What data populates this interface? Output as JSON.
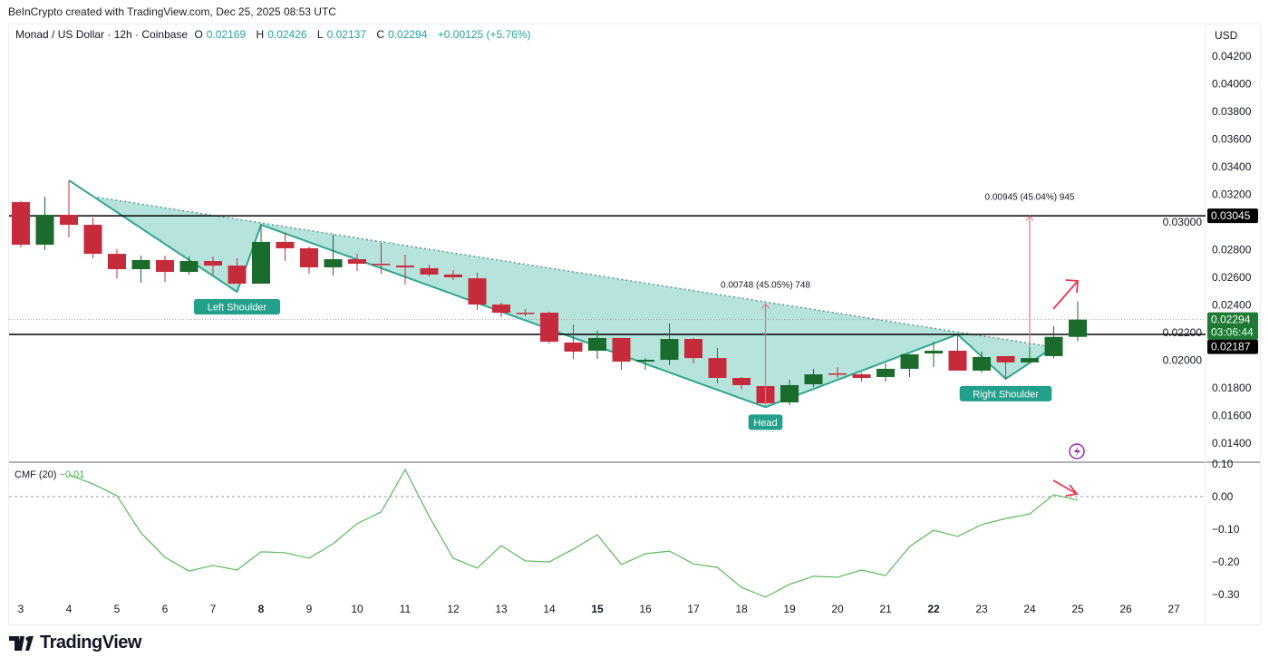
{
  "credit": "BeInCrypto created with TradingView.com, Dec 25, 2025 08:53 UTC",
  "legend": {
    "symbol": "Monad / US Dollar · 12h · Coinbase",
    "o_label": "O",
    "o": "0.02169",
    "h_label": "H",
    "h": "0.02426",
    "l_label": "L",
    "l": "0.02137",
    "c_label": "C",
    "c": "0.02294",
    "change": "+0.00125 (+5.76%)"
  },
  "currency": "USD",
  "logo": "TradingView",
  "colors": {
    "up": "#1a6b2c",
    "down": "#c62b3c",
    "pattern_fill": "#b2e3da",
    "pattern_line": "#2fa58e",
    "cmf": "#5cb85c",
    "arrow": "#e8364f",
    "lightning": "#9c27b0"
  },
  "chart_data": [
    {
      "type": "candlestick",
      "interval": "12h",
      "y_axis": {
        "range": [
          0.014,
          0.042
        ],
        "ticks": [
          "0.04200",
          "0.04000",
          "0.03800",
          "0.03600",
          "0.03400",
          "0.03200",
          "0.03000",
          "0.02800",
          "0.02600",
          "0.02400",
          "0.02200",
          "0.02000",
          "0.01800",
          "0.01600",
          "0.01400"
        ]
      },
      "x_axis": {
        "ticks": [
          {
            "label": "3",
            "day": 3
          },
          {
            "label": "4",
            "day": 4
          },
          {
            "label": "5",
            "day": 5
          },
          {
            "label": "6",
            "day": 6
          },
          {
            "label": "7",
            "day": 7
          },
          {
            "label": "8",
            "day": 8,
            "bold": true
          },
          {
            "label": "9",
            "day": 9
          },
          {
            "label": "10",
            "day": 10
          },
          {
            "label": "11",
            "day": 11
          },
          {
            "label": "12",
            "day": 12
          },
          {
            "label": "13",
            "day": 13
          },
          {
            "label": "14",
            "day": 14
          },
          {
            "label": "15",
            "day": 15,
            "bold": true
          },
          {
            "label": "16",
            "day": 16
          },
          {
            "label": "17",
            "day": 17
          },
          {
            "label": "18",
            "day": 18
          },
          {
            "label": "19",
            "day": 19
          },
          {
            "label": "20",
            "day": 20
          },
          {
            "label": "21",
            "day": 21
          },
          {
            "label": "22",
            "day": 22,
            "bold": true
          },
          {
            "label": "23",
            "day": 23
          },
          {
            "label": "24",
            "day": 24
          },
          {
            "label": "25",
            "day": 25
          },
          {
            "label": "26",
            "day": 26
          },
          {
            "label": "27",
            "day": 27
          }
        ]
      },
      "candles": [
        {
          "t": "Dec 3 00:00",
          "o": 0.03144,
          "h": 0.03151,
          "l": 0.02816,
          "c": 0.02836
        },
        {
          "t": "Dec 3 12:00",
          "o": 0.02836,
          "h": 0.03184,
          "l": 0.02797,
          "c": 0.03052
        },
        {
          "t": "Dec 4 00:00",
          "o": 0.03052,
          "h": 0.03302,
          "l": 0.02889,
          "c": 0.0298
        },
        {
          "t": "Dec 4 12:00",
          "o": 0.0298,
          "h": 0.03033,
          "l": 0.02738,
          "c": 0.0277
        },
        {
          "t": "Dec 5 00:00",
          "o": 0.0277,
          "h": 0.02803,
          "l": 0.02593,
          "c": 0.02659
        },
        {
          "t": "Dec 5 12:00",
          "o": 0.02659,
          "h": 0.02757,
          "l": 0.02561,
          "c": 0.02725
        },
        {
          "t": "Dec 6 00:00",
          "o": 0.02725,
          "h": 0.02757,
          "l": 0.02567,
          "c": 0.02639
        },
        {
          "t": "Dec 6 12:00",
          "o": 0.02639,
          "h": 0.02751,
          "l": 0.0262,
          "c": 0.02718
        },
        {
          "t": "Dec 7 00:00",
          "o": 0.02718,
          "h": 0.02751,
          "l": 0.0262,
          "c": 0.02685
        },
        {
          "t": "Dec 7 12:00",
          "o": 0.02685,
          "h": 0.02738,
          "l": 0.02554,
          "c": 0.02554
        },
        {
          "t": "Dec 8 00:00",
          "o": 0.02554,
          "h": 0.0298,
          "l": 0.02554,
          "c": 0.02856
        },
        {
          "t": "Dec 8 12:00",
          "o": 0.02856,
          "h": 0.02921,
          "l": 0.02718,
          "c": 0.0281
        },
        {
          "t": "Dec 9 00:00",
          "o": 0.0281,
          "h": 0.02823,
          "l": 0.02626,
          "c": 0.02672
        },
        {
          "t": "Dec 9 12:00",
          "o": 0.02672,
          "h": 0.02908,
          "l": 0.02613,
          "c": 0.02731
        },
        {
          "t": "Dec 10 00:00",
          "o": 0.02731,
          "h": 0.0277,
          "l": 0.02646,
          "c": 0.02698
        },
        {
          "t": "Dec 10 12:00",
          "o": 0.02698,
          "h": 0.02849,
          "l": 0.02626,
          "c": 0.02692
        },
        {
          "t": "Dec 11 00:00",
          "o": 0.02685,
          "h": 0.02764,
          "l": 0.02548,
          "c": 0.02672
        },
        {
          "t": "Dec 11 12:00",
          "o": 0.02666,
          "h": 0.02692,
          "l": 0.02607,
          "c": 0.0262
        },
        {
          "t": "Dec 12 00:00",
          "o": 0.0262,
          "h": 0.02652,
          "l": 0.0258,
          "c": 0.026
        },
        {
          "t": "Dec 12 12:00",
          "o": 0.02593,
          "h": 0.02633,
          "l": 0.02364,
          "c": 0.02403
        },
        {
          "t": "Dec 13 00:00",
          "o": 0.02403,
          "h": 0.02416,
          "l": 0.02311,
          "c": 0.02344
        },
        {
          "t": "Dec 13 12:00",
          "o": 0.02344,
          "h": 0.0237,
          "l": 0.02318,
          "c": 0.0234
        },
        {
          "t": "Dec 14 00:00",
          "o": 0.02344,
          "h": 0.02351,
          "l": 0.02121,
          "c": 0.02134
        },
        {
          "t": "Dec 14 12:00",
          "o": 0.02128,
          "h": 0.02259,
          "l": 0.0201,
          "c": 0.02062
        },
        {
          "t": "Dec 15 00:00",
          "o": 0.02069,
          "h": 0.02213,
          "l": 0.0201,
          "c": 0.02161
        },
        {
          "t": "Dec 15 12:00",
          "o": 0.02161,
          "h": 0.02161,
          "l": 0.01931,
          "c": 0.0199
        },
        {
          "t": "Dec 16 00:00",
          "o": 0.0199,
          "h": 0.02016,
          "l": 0.01931,
          "c": 0.02003
        },
        {
          "t": "Dec 16 12:00",
          "o": 0.02003,
          "h": 0.02266,
          "l": 0.01964,
          "c": 0.02154
        },
        {
          "t": "Dec 17 00:00",
          "o": 0.02154,
          "h": 0.02161,
          "l": 0.01977,
          "c": 0.02016
        },
        {
          "t": "Dec 17 12:00",
          "o": 0.02016,
          "h": 0.02089,
          "l": 0.01833,
          "c": 0.01872
        },
        {
          "t": "Dec 18 00:00",
          "o": 0.01872,
          "h": 0.01879,
          "l": 0.01787,
          "c": 0.0182
        },
        {
          "t": "Dec 18 12:00",
          "o": 0.01813,
          "h": 0.01879,
          "l": 0.0166,
          "c": 0.01689
        },
        {
          "t": "Dec 19 00:00",
          "o": 0.01695,
          "h": 0.01859,
          "l": 0.01675,
          "c": 0.0182
        },
        {
          "t": "Dec 19 12:00",
          "o": 0.01826,
          "h": 0.01938,
          "l": 0.01807,
          "c": 0.01898
        },
        {
          "t": "Dec 20 00:00",
          "o": 0.01905,
          "h": 0.01951,
          "l": 0.01872,
          "c": 0.019
        },
        {
          "t": "Dec 20 12:00",
          "o": 0.01898,
          "h": 0.01911,
          "l": 0.01846,
          "c": 0.01872
        },
        {
          "t": "Dec 21 00:00",
          "o": 0.01879,
          "h": 0.01977,
          "l": 0.01846,
          "c": 0.01938
        },
        {
          "t": "Dec 21 12:00",
          "o": 0.01938,
          "h": 0.02043,
          "l": 0.01879,
          "c": 0.02043
        },
        {
          "t": "Dec 22 00:00",
          "o": 0.02049,
          "h": 0.02134,
          "l": 0.01951,
          "c": 0.02069
        },
        {
          "t": "Dec 22 12:00",
          "o": 0.02069,
          "h": 0.02187,
          "l": 0.01925,
          "c": 0.01925
        },
        {
          "t": "Dec 23 00:00",
          "o": 0.01925,
          "h": 0.02062,
          "l": 0.01911,
          "c": 0.02023
        },
        {
          "t": "Dec 23 12:00",
          "o": 0.0203,
          "h": 0.0203,
          "l": 0.01859,
          "c": 0.01984
        },
        {
          "t": "Dec 24 00:00",
          "o": 0.01984,
          "h": 0.02095,
          "l": 0.01977,
          "c": 0.02016
        },
        {
          "t": "Dec 24 12:00",
          "o": 0.0203,
          "h": 0.02246,
          "l": 0.02016,
          "c": 0.02169
        },
        {
          "t": "Dec 25 00:00",
          "o": 0.02169,
          "h": 0.02426,
          "l": 0.02137,
          "c": 0.02294
        }
      ],
      "horizontal_lines": [
        {
          "price": 0.03045,
          "label": "0.03045"
        },
        {
          "price": 0.02187,
          "label": "0.02187"
        }
      ],
      "current_price": {
        "price": 0.02294,
        "label": "0.02294",
        "countdown": "03:06:44"
      },
      "pattern": {
        "outline": [
          {
            "t": "Dec 4 00:00",
            "p": 0.03302
          },
          {
            "t": "Dec 7 12:00",
            "p": 0.02495
          },
          {
            "t": "Dec 8 00:00",
            "p": 0.0298
          },
          {
            "t": "Dec 18 12:00",
            "p": 0.0166
          },
          {
            "t": "Dec 22 12:00",
            "p": 0.02187
          },
          {
            "t": "Dec 23 12:00",
            "p": 0.01866
          },
          {
            "t": "Dec 24 12:00",
            "p": 0.02095
          }
        ],
        "neckline": [
          {
            "t": "Dec 4 12:00",
            "p": 0.03184
          },
          {
            "t": "Dec 24 12:00",
            "p": 0.02095
          }
        ],
        "labels": [
          {
            "text": "Left Shoulder",
            "t": "Dec 7 12:00",
            "p": 0.02495
          },
          {
            "text": "Head",
            "t": "Dec 18 12:00",
            "p": 0.0166
          },
          {
            "text": "Right Shoulder",
            "t": "Dec 23 12:00",
            "p": 0.01866
          }
        ]
      },
      "measurements": [
        {
          "t": "Dec 18 12:00",
          "from": 0.0166,
          "to": 0.02408,
          "label": "0.00748 (45.05%) 748"
        },
        {
          "t": "Dec 24 00:00",
          "from": 0.02098,
          "to": 0.03043,
          "label": "0.00945 (45.04%) 945"
        }
      ]
    },
    {
      "type": "line",
      "name": "CMF (20)",
      "last_value": "−0.01",
      "y_axis": {
        "range": [
          -0.33,
          0.1
        ],
        "ticks": [
          "0.10",
          "0.00",
          "−0.10",
          "−0.20",
          "−0.30"
        ],
        "zero_line": true
      },
      "start": "Dec 4 00:00",
      "values": [
        0.067,
        0.039,
        0.003,
        -0.111,
        -0.186,
        -0.228,
        -0.211,
        -0.225,
        -0.169,
        -0.172,
        -0.189,
        -0.144,
        -0.083,
        -0.047,
        0.083,
        -0.061,
        -0.189,
        -0.219,
        -0.15,
        -0.197,
        -0.2,
        -0.161,
        -0.117,
        -0.208,
        -0.175,
        -0.167,
        -0.206,
        -0.217,
        -0.278,
        -0.308,
        -0.269,
        -0.244,
        -0.247,
        -0.225,
        -0.242,
        -0.153,
        -0.103,
        -0.122,
        -0.086,
        -0.067,
        -0.053,
        0.006,
        -0.011
      ]
    }
  ]
}
